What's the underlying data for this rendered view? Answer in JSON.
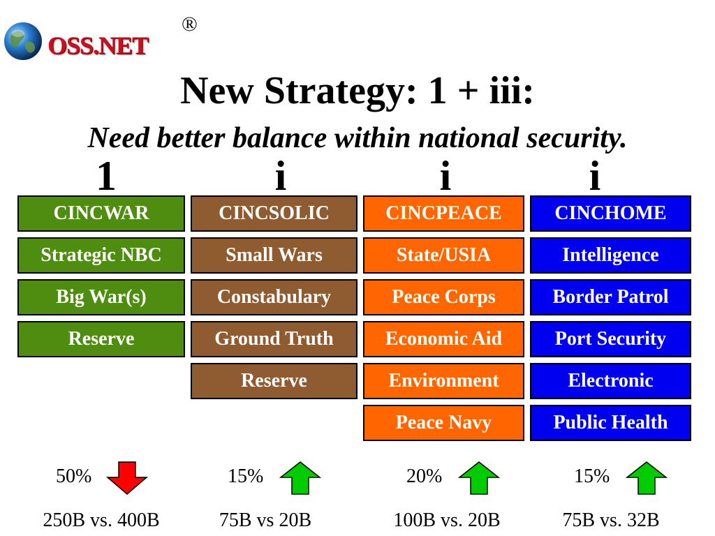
{
  "logo": {
    "text": "OSS.NET",
    "registered": "®",
    "icon": "globe-icon"
  },
  "title": "New Strategy: 1 + iii:",
  "subtitle": "Need better balance within national security.",
  "colors": {
    "green": "#4e8d10",
    "brown": "#8f5b31",
    "orange": "#ff6600",
    "blue": "#0000f0",
    "arrow_down": "#ff0000",
    "arrow_up": "#00cc00"
  },
  "columns": [
    {
      "header": "1",
      "items": [
        "CINCWAR",
        "Strategic NBC",
        "Big War(s)",
        "Reserve"
      ],
      "percent": "50%",
      "trend": "down",
      "budget": "250B vs. 400B"
    },
    {
      "header": "i",
      "items": [
        "CINCSOLIC",
        "Small Wars",
        "Constabulary",
        "Ground Truth",
        "Reserve"
      ],
      "percent": "15%",
      "trend": "up",
      "budget": "75B vs 20B"
    },
    {
      "header": "i",
      "items": [
        "CINCPEACE",
        "State/USIA",
        "Peace Corps",
        "Economic Aid",
        "Environment",
        "Peace Navy"
      ],
      "percent": "20%",
      "trend": "up",
      "budget": "100B vs. 20B"
    },
    {
      "header": "i",
      "items": [
        "CINCHOME",
        "Intelligence",
        "Border Patrol",
        "Port Security",
        "Electronic",
        "Public Health"
      ],
      "percent": "15%",
      "trend": "up",
      "budget": "75B vs. 32B"
    }
  ]
}
